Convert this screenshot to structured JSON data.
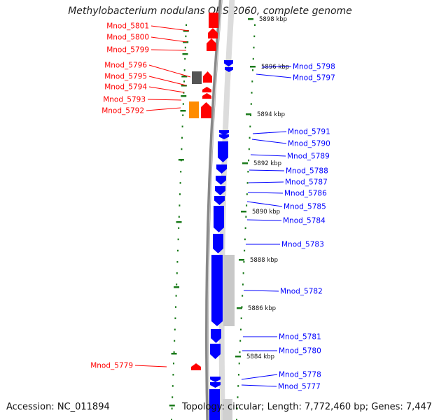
{
  "title": "Methylobacterium nodulans ORS 2060, complete genome",
  "accession": "Accession: NC_011894",
  "topology": "Topology: circular; Length: 7,772,460 bp; Genes: 7,447",
  "colors": {
    "forward": "#ff0000",
    "reverse": "#0000ff",
    "pseudo_dark": "#555555",
    "special": "#ff8c00",
    "backbone": "#888888",
    "tick": "#1a7a1a"
  },
  "kbp_labels": [
    "5898 kbp",
    "5896 kbp",
    "5894 kbp",
    "5892 kbp",
    "5890 kbp",
    "5888 kbp",
    "5886 kbp",
    "5884 kbp"
  ],
  "left_genes": [
    "Mnod_5801",
    "Mnod_5800",
    "Mnod_5799",
    "Mnod_5796",
    "Mnod_5795",
    "Mnod_5794",
    "Mnod_5793",
    "Mnod_5792",
    "Mnod_5779"
  ],
  "right_genes": [
    "Mnod_5798",
    "Mnod_5797",
    "Mnod_5791",
    "Mnod_5790",
    "Mnod_5789",
    "Mnod_5788",
    "Mnod_5787",
    "Mnod_5786",
    "Mnod_5785",
    "Mnod_5784",
    "Mnod_5783",
    "Mnod_5782",
    "Mnod_5781",
    "Mnod_5780",
    "Mnod_5778",
    "Mnod_5777"
  ]
}
